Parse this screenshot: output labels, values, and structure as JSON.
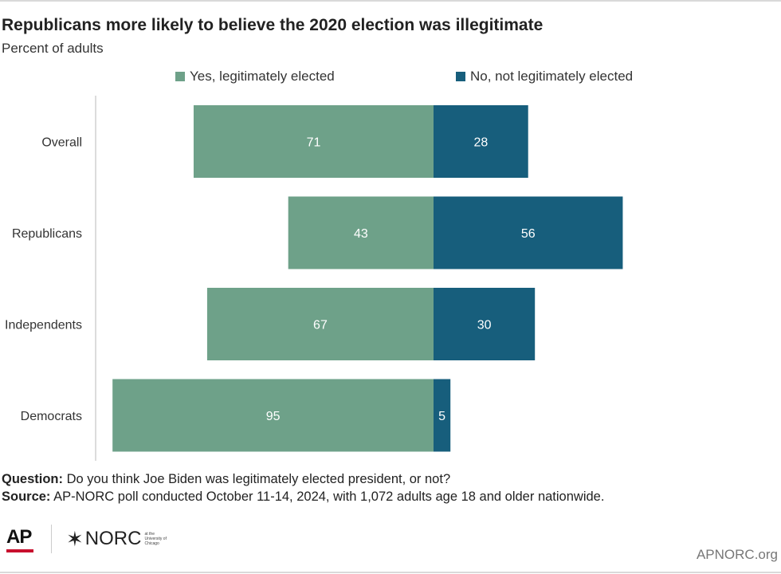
{
  "title": "Republicans more likely to believe the 2020 election was illegitimate",
  "subtitle": "Percent of adults",
  "legend": {
    "yes_label": "Yes, legitimately elected",
    "no_label": "No, not legitimately elected"
  },
  "colors": {
    "yes": "#6ea189",
    "no": "#175e7c"
  },
  "chart_data": {
    "type": "bar",
    "orientation": "horizontal-diverging",
    "categories": [
      "Overall",
      "Republicans",
      "Independents",
      "Democrats"
    ],
    "series": [
      {
        "name": "Yes, legitimately elected",
        "values": [
          71,
          43,
          67,
          95
        ]
      },
      {
        "name": "No, not legitimately elected",
        "values": [
          28,
          56,
          30,
          5
        ]
      }
    ],
    "title": "Republicans more likely to believe the 2020 election was illegitimate",
    "subtitle": "Percent of adults",
    "legend_position": "top"
  },
  "notes": {
    "question_label": "Question:",
    "question_text": "Do you think Joe Biden was legitimately elected president, or not?",
    "source_label": "Source:",
    "source_text": "AP-NORC poll conducted October 11-14, 2024, with 1,072 adults age 18 and older nationwide."
  },
  "logos": {
    "ap": "AP",
    "norc": "NORC",
    "norc_small": "at the University of Chicago"
  },
  "site": "APNORC.org"
}
